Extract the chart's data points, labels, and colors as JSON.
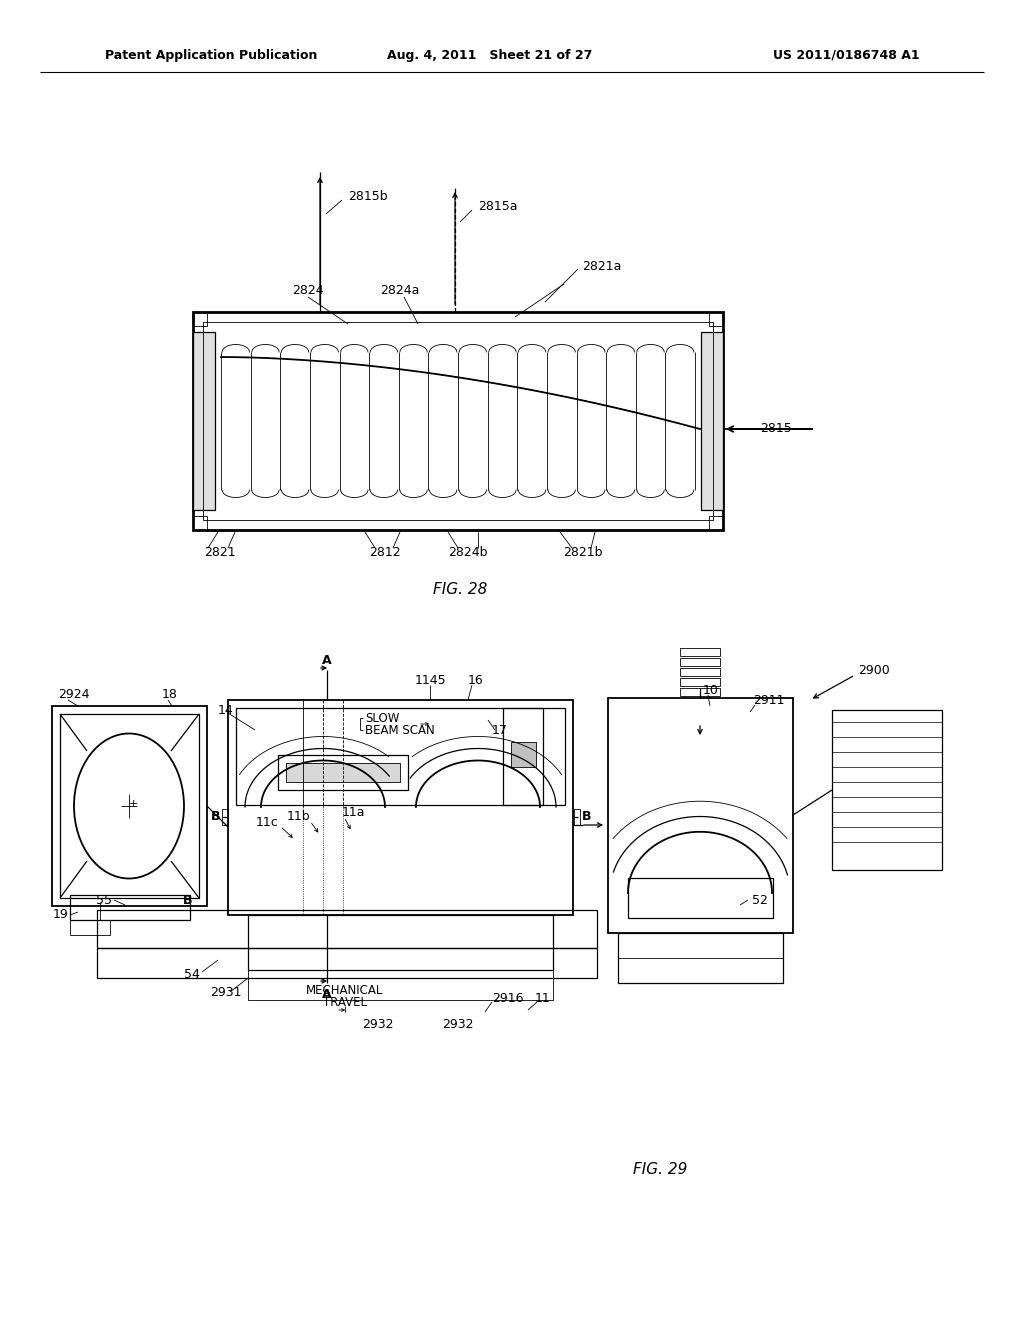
{
  "bg_color": "#ffffff",
  "line_color": "#000000",
  "header_left": "Patent Application Publication",
  "header_mid": "Aug. 4, 2011   Sheet 21 of 27",
  "header_right": "US 2011/0186748 A1",
  "fig28_label": "FIG. 28",
  "fig29_label": "FIG. 29"
}
